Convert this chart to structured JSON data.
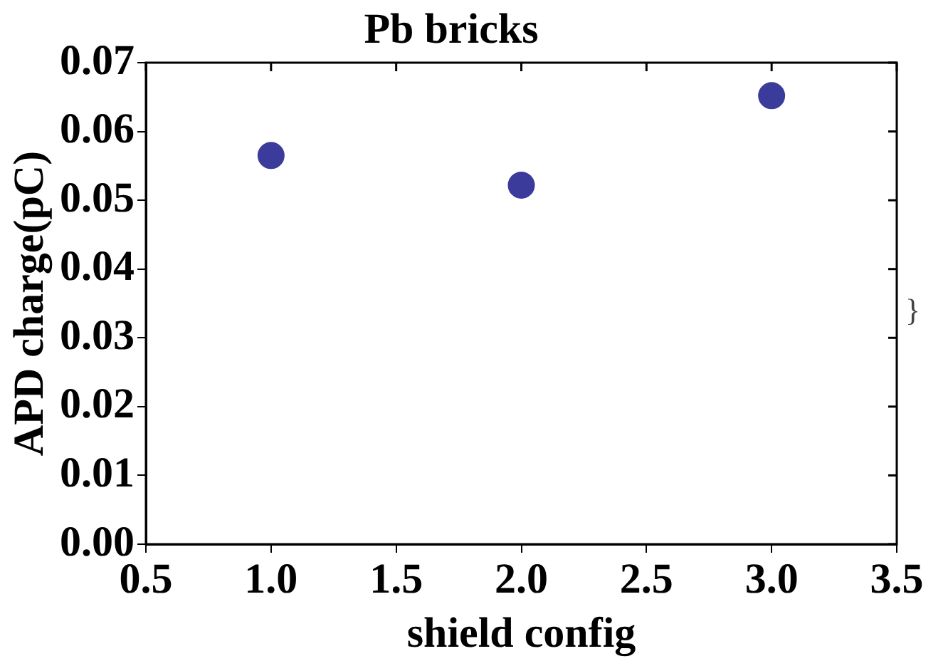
{
  "chart_data": {
    "type": "scatter",
    "title": "Pb bricks",
    "xlabel": "shield config",
    "ylabel": "APD charge(pC)",
    "x": [
      1,
      2,
      3
    ],
    "series": [
      {
        "color": "#3b3b9b",
        "values": [
          0.0565,
          0.0522,
          0.0652
        ]
      }
    ],
    "xlim": [
      0.5,
      3.5
    ],
    "xticks": [
      {
        "value": 0.5,
        "label": "0.5"
      },
      {
        "value": 1,
        "label": "1.0"
      },
      {
        "value": 1.5,
        "label": "1.5"
      },
      {
        "value": 2,
        "label": "2.0"
      },
      {
        "value": 2.5,
        "label": "2.5"
      },
      {
        "value": 3,
        "label": "3.0"
      },
      {
        "value": 3.5,
        "label": "3.5"
      }
    ],
    "ylim": [
      0,
      0.07
    ],
    "yticks": [
      {
        "value": 0,
        "label": "0.00"
      },
      {
        "value": 0.01,
        "label": "0.01"
      },
      {
        "value": 0.02,
        "label": "0.02"
      },
      {
        "value": 0.03,
        "label": "0.03"
      },
      {
        "value": 0.04,
        "label": "0.04"
      },
      {
        "value": 0.05,
        "label": "0.05"
      },
      {
        "value": 0.06,
        "label": "0.06"
      },
      {
        "value": 0.07,
        "label": "0.07"
      }
    ],
    "grid": false,
    "legend": false,
    "marker": "circle",
    "annotations": [
      "}"
    ]
  }
}
